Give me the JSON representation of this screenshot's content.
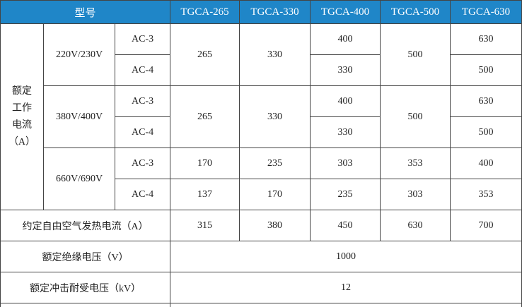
{
  "header": {
    "model_label": "型号",
    "models": [
      "TGCA-265",
      "TGCA-330",
      "TGCA-400",
      "TGCA-500",
      "TGCA-630"
    ]
  },
  "rated_current": {
    "group_label": [
      "额定",
      "工作",
      "电流",
      "（A）"
    ],
    "voltages": [
      {
        "label": "220V/230V",
        "rows": [
          {
            "cat": "AC-3",
            "values": [
              "265",
              "330",
              "400",
              "500",
              "630"
            ]
          },
          {
            "cat": "AC-4",
            "values": [
              "265",
              "330",
              "330",
              "500",
              "500"
            ]
          }
        ]
      },
      {
        "label": "380V/400V",
        "rows": [
          {
            "cat": "AC-3",
            "values": [
              "265",
              "330",
              "400",
              "500",
              "630"
            ]
          },
          {
            "cat": "AC-4",
            "values": [
              "265",
              "330",
              "330",
              "500",
              "500"
            ]
          }
        ]
      },
      {
        "label": "660V/690V",
        "rows": [
          {
            "cat": "AC-3",
            "values": [
              "170",
              "235",
              "303",
              "353",
              "400"
            ]
          },
          {
            "cat": "AC-4",
            "values": [
              "137",
              "170",
              "235",
              "303",
              "353"
            ]
          }
        ]
      }
    ]
  },
  "thermal": {
    "label": "约定自由空气发热电流（A）",
    "values": [
      "315",
      "380",
      "450",
      "630",
      "700"
    ]
  },
  "insulation": {
    "label": "额定绝缘电压（V）",
    "value": "1000"
  },
  "impulse": {
    "label": "额定冲击耐受电压（kV）",
    "value": "12"
  },
  "colors": {
    "header_bg": "#1f86c8",
    "header_text": "#ffffff",
    "border": "#444444"
  }
}
